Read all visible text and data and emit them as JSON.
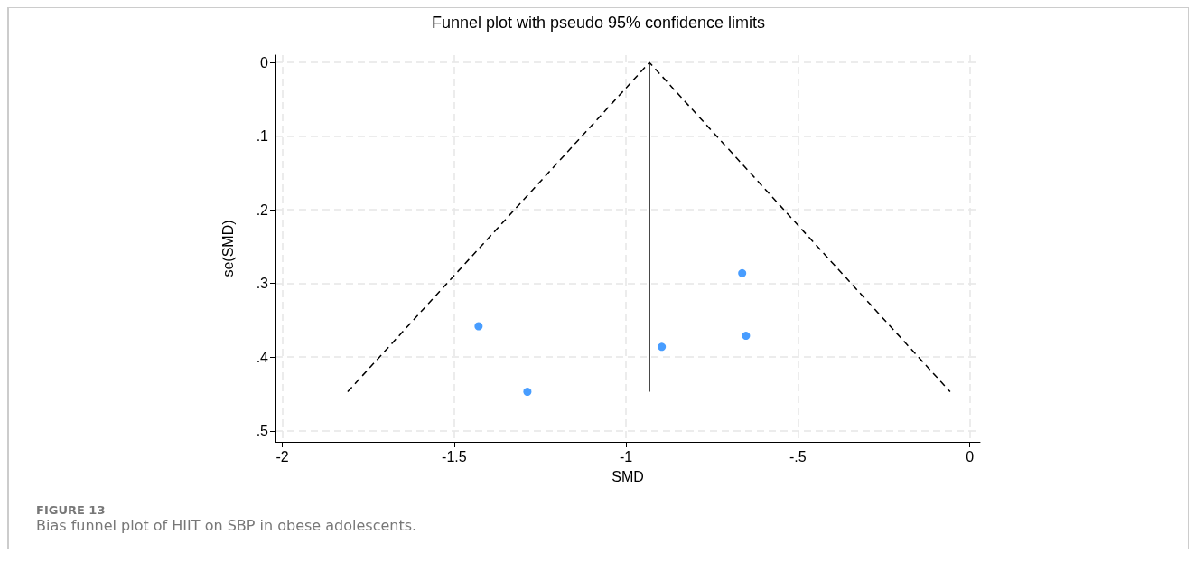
{
  "chart_data": {
    "type": "scatter",
    "title": "Funnel plot with pseudo 95% confidence limits",
    "xlabel": "SMD",
    "ylabel": "se(SMD)",
    "annotations": [
      "FIGURE 13",
      "Bias funnel plot of HIIT on SBP in obese adolescents."
    ],
    "series": [
      {
        "color": "#1a85ff",
        "x": [
          -1.429,
          -1.287,
          -0.896,
          -0.662,
          -0.651
        ],
        "values": [
          0.358,
          0.447,
          0.386,
          0.286,
          0.371
        ],
        "marker": "circle"
      },
      {
        "type": "line",
        "color": "#000000",
        "x": [
          -1.81,
          -0.932,
          -0.057
        ],
        "values": [
          0.447,
          0,
          0.447
        ],
        "line_style": "dashed",
        "marker": "none"
      },
      {
        "type": "line",
        "color": "#000000",
        "x": [
          -0.932,
          -0.932
        ],
        "values": [
          0,
          0.447
        ],
        "line_style": "solid",
        "marker": "none"
      }
    ],
    "xlim": [
      -2.02,
      0.03
    ],
    "ylim": [
      0.515,
      -0.01
    ],
    "xticks": [
      {
        "value": -2,
        "label": "-2"
      },
      {
        "value": -1.5,
        "label": "-1.5"
      },
      {
        "value": -1,
        "label": "-1"
      },
      {
        "value": -0.5,
        "label": "-.5"
      },
      {
        "value": 0,
        "label": "0"
      }
    ],
    "yticks": [
      {
        "value": 0,
        "label": "0"
      },
      {
        "value": 0.1,
        "label": ".1"
      },
      {
        "value": 0.2,
        "label": ".2"
      },
      {
        "value": 0.3,
        "label": ".3"
      },
      {
        "value": 0.4,
        "label": ".4"
      },
      {
        "value": 0.5,
        "label": ".5"
      }
    ],
    "grid": true
  }
}
